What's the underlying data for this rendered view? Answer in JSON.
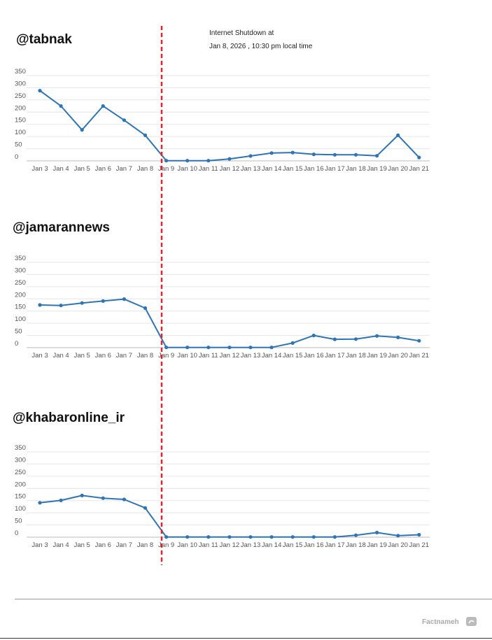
{
  "annotation": {
    "line1": "Internet Shutdown at",
    "line2": "Jan 8, 2026 , 10:30 pm local time",
    "marker_color": "#e8202a"
  },
  "brand": {
    "name": "Factnameh"
  },
  "colors": {
    "series": "#2e75b6",
    "grid": "#e6e6e6",
    "marker": "#e8202a"
  },
  "chart_data": [
    {
      "type": "line",
      "title": "@tabnak",
      "categories": [
        "Jan 3",
        "Jan 4",
        "Jan 5",
        "Jan 6",
        "Jan 7",
        "Jan 8",
        "Jan 9",
        "Jan 10",
        "Jan 11",
        "Jan 12",
        "Jan 13",
        "Jan 14",
        "Jan 15",
        "Jan 16",
        "Jan 17",
        "Jan 18",
        "Jan 19",
        "Jan 20",
        "Jan 21"
      ],
      "yticks": [
        "0",
        "50",
        "100",
        "150",
        "200",
        "250",
        "300",
        "350"
      ],
      "ylim": [
        0,
        350
      ],
      "series": [
        {
          "values": [
            288,
            225,
            127,
            225,
            167,
            105,
            1,
            1,
            1,
            8,
            20,
            32,
            34,
            27,
            25,
            25,
            21,
            105,
            14
          ]
        }
      ]
    },
    {
      "type": "line",
      "title": "@jamarannews",
      "categories": [
        "Jan 3",
        "Jan 4",
        "Jan 5",
        "Jan 6",
        "Jan 7",
        "Jan 8",
        "Jan 9",
        "Jan 10",
        "Jan 11",
        "Jan 12",
        "Jan 13",
        "Jan 14",
        "Jan 15",
        "Jan 16",
        "Jan 17",
        "Jan 18",
        "Jan 19",
        "Jan 20",
        "Jan 21"
      ],
      "yticks": [
        "0",
        "50",
        "100",
        "150",
        "200",
        "250",
        "300",
        "350"
      ],
      "ylim": [
        0,
        350
      ],
      "series": [
        {
          "values": [
            175,
            173,
            183,
            191,
            199,
            162,
            1,
            1,
            1,
            1,
            1,
            1,
            19,
            50,
            34,
            35,
            48,
            42,
            28
          ]
        }
      ]
    },
    {
      "type": "line",
      "title": "@khabaronline_ir",
      "categories": [
        "Jan 3",
        "Jan 4",
        "Jan 5",
        "Jan 6",
        "Jan 7",
        "Jan 8",
        "Jan 9",
        "Jan 10",
        "Jan 11",
        "Jan 12",
        "Jan 13",
        "Jan 14",
        "Jan 15",
        "Jan 16",
        "Jan 17",
        "Jan 18",
        "Jan 19",
        "Jan 20",
        "Jan 21"
      ],
      "yticks": [
        "0",
        "50",
        "100",
        "150",
        "200",
        "250",
        "300",
        "350"
      ],
      "ylim": [
        0,
        350
      ],
      "series": [
        {
          "values": [
            141,
            151,
            171,
            160,
            155,
            120,
            1,
            1,
            1,
            1,
            1,
            1,
            1,
            1,
            1,
            8,
            19,
            6,
            10
          ]
        }
      ]
    }
  ]
}
